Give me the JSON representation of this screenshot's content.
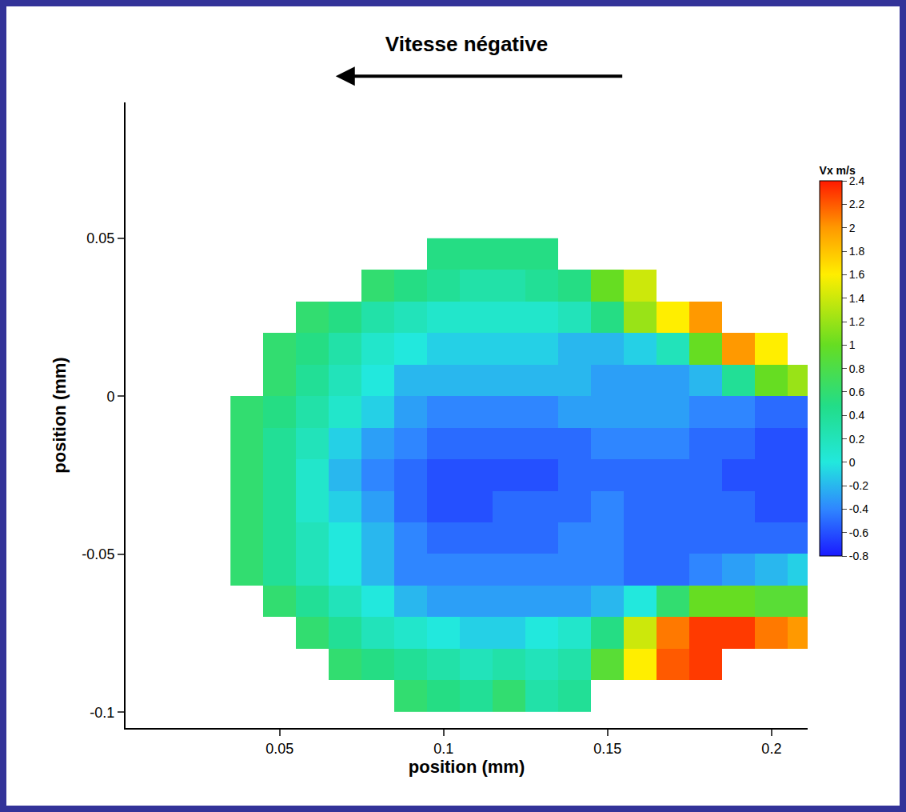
{
  "chart_data": {
    "type": "heatmap",
    "title": "Vitesse négative",
    "x_label": "position (mm)",
    "y_label": "position (mm)",
    "colorbar_title": "Vx m/s",
    "colorbar_range": [
      -0.8,
      2.4
    ],
    "colorbar_ticks": [
      -0.8,
      -0.6,
      -0.4,
      -0.2,
      0,
      0.2,
      0.4,
      0.6,
      0.8,
      1,
      1.2,
      1.4,
      1.6,
      1.8,
      2,
      2.2,
      2.4
    ],
    "xlim": [
      0.003,
      0.211
    ],
    "ylim": [
      -0.105,
      0.093
    ],
    "xticks": [
      0.05,
      0.1,
      0.15,
      0.2
    ],
    "yticks": [
      -0.1,
      -0.05,
      0,
      0.05
    ],
    "grid": false,
    "x": [
      0.04,
      0.05,
      0.06,
      0.07,
      0.08,
      0.09,
      0.1,
      0.11,
      0.12,
      0.13,
      0.14,
      0.15,
      0.16,
      0.17,
      0.18,
      0.19,
      0.2,
      0.21
    ],
    "y": [
      -0.095,
      -0.085,
      -0.075,
      -0.065,
      -0.055,
      -0.045,
      -0.035,
      -0.025,
      -0.015,
      -0.005,
      0.005,
      0.015,
      0.025,
      0.035,
      0.045
    ],
    "z": [
      [
        null,
        null,
        null,
        null,
        null,
        0.6,
        0.5,
        0.4,
        0.6,
        0.3,
        0.4,
        null,
        null,
        null,
        null,
        null,
        null,
        null
      ],
      [
        null,
        null,
        null,
        0.6,
        0.5,
        0.4,
        0.3,
        0.2,
        0.3,
        0.2,
        0.3,
        0.9,
        1.6,
        2.2,
        2.3,
        null,
        null,
        null
      ],
      [
        null,
        null,
        0.6,
        0.4,
        0.2,
        0.1,
        0.0,
        -0.1,
        -0.1,
        0.0,
        0.1,
        0.5,
        1.4,
        2.1,
        2.3,
        2.3,
        2.1,
        2.0
      ],
      [
        null,
        0.6,
        0.4,
        0.2,
        0.0,
        -0.2,
        -0.3,
        -0.3,
        -0.3,
        -0.3,
        -0.3,
        -0.2,
        0.0,
        0.6,
        1.0,
        1.0,
        0.9,
        0.9
      ],
      [
        0.6,
        0.4,
        0.2,
        0.0,
        -0.2,
        -0.4,
        -0.4,
        -0.4,
        -0.4,
        -0.4,
        -0.4,
        -0.4,
        -0.5,
        -0.5,
        -0.4,
        -0.3,
        -0.2,
        -0.1
      ],
      [
        0.6,
        0.4,
        0.2,
        0.0,
        -0.2,
        -0.4,
        -0.5,
        -0.5,
        -0.5,
        -0.5,
        -0.4,
        -0.4,
        -0.5,
        -0.5,
        -0.5,
        -0.5,
        -0.5,
        -0.5
      ],
      [
        0.6,
        0.4,
        0.1,
        -0.1,
        -0.3,
        -0.5,
        -0.6,
        -0.6,
        -0.5,
        -0.5,
        -0.5,
        -0.4,
        -0.5,
        -0.5,
        -0.5,
        -0.5,
        -0.6,
        -0.6
      ],
      [
        0.6,
        0.4,
        0.1,
        -0.2,
        -0.4,
        -0.5,
        -0.6,
        -0.6,
        -0.6,
        -0.6,
        -0.5,
        -0.5,
        -0.5,
        -0.5,
        -0.5,
        -0.6,
        -0.6,
        -0.6
      ],
      [
        0.6,
        0.4,
        0.2,
        -0.1,
        -0.3,
        -0.4,
        -0.5,
        -0.5,
        -0.5,
        -0.5,
        -0.5,
        -0.4,
        -0.4,
        -0.4,
        -0.5,
        -0.5,
        -0.6,
        -0.6
      ],
      [
        0.6,
        0.5,
        0.3,
        0.1,
        -0.1,
        -0.3,
        -0.4,
        -0.4,
        -0.4,
        -0.4,
        -0.3,
        -0.3,
        -0.3,
        -0.3,
        -0.4,
        -0.4,
        -0.5,
        -0.5
      ],
      [
        null,
        0.6,
        0.4,
        0.2,
        0.0,
        -0.2,
        -0.2,
        -0.2,
        -0.2,
        -0.2,
        -0.2,
        -0.3,
        -0.3,
        -0.3,
        -0.2,
        0.4,
        1.0,
        1.2
      ],
      [
        null,
        0.6,
        0.5,
        0.3,
        0.1,
        0.0,
        -0.1,
        -0.1,
        -0.1,
        -0.1,
        -0.2,
        -0.2,
        -0.1,
        0.2,
        1.0,
        2.0,
        1.6,
        null
      ],
      [
        null,
        null,
        0.6,
        0.5,
        0.3,
        0.2,
        0.1,
        0.1,
        0.1,
        0.1,
        0.2,
        0.5,
        1.2,
        1.6,
        2.0,
        null,
        null,
        null
      ],
      [
        null,
        null,
        null,
        null,
        0.6,
        0.5,
        0.4,
        0.3,
        0.3,
        0.4,
        0.5,
        1.0,
        1.4,
        null,
        null,
        null,
        null,
        null
      ],
      [
        null,
        null,
        null,
        null,
        null,
        null,
        0.5,
        0.5,
        0.5,
        0.5,
        null,
        null,
        null,
        null,
        null,
        null,
        null,
        null
      ]
    ]
  }
}
